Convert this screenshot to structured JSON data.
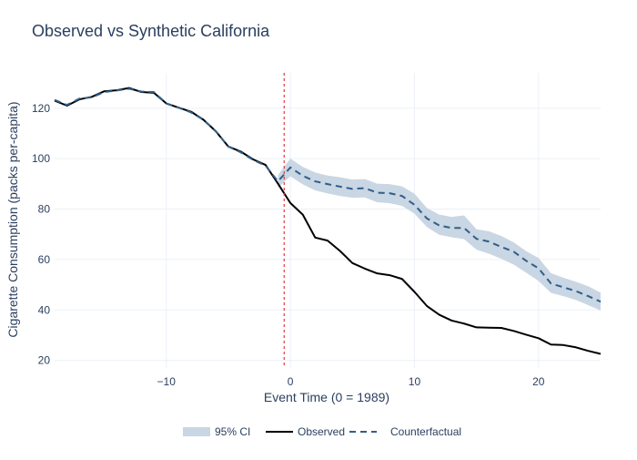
{
  "colors": {
    "title": "#2a3f5f",
    "axis_text": "#2a3f5f",
    "grid": "#ebf0f8",
    "observed": "#000000",
    "counterfactual": "#2f5f8a",
    "ci_fill": "#c9d6e3",
    "event_line": "#e0393e"
  },
  "chart_data": {
    "type": "line",
    "title": "Observed vs Synthetic California",
    "xlabel": "Event Time (0 = 1989)",
    "ylabel": "Cigarette Consumption (packs per-capita)",
    "xlim": [
      -19,
      25
    ],
    "ylim": [
      17,
      134
    ],
    "x_ticks": [
      -10,
      0,
      10,
      20
    ],
    "x_tick_labels": [
      "−10",
      "0",
      "10",
      "20"
    ],
    "y_ticks": [
      20,
      40,
      60,
      80,
      100,
      120
    ],
    "grid": true,
    "legend_position": "bottom-center",
    "event_time_marker": -0.5,
    "x": [
      -19,
      -18,
      -17,
      -16,
      -15,
      -14,
      -13,
      -12,
      -11,
      -10,
      -9,
      -8,
      -7,
      -6,
      -5,
      -4,
      -3,
      -2,
      -1,
      0,
      1,
      2,
      3,
      4,
      5,
      6,
      7,
      8,
      9,
      10,
      11,
      12,
      13,
      14,
      15,
      16,
      17,
      18,
      19,
      20,
      21,
      22,
      23,
      24,
      25
    ],
    "series": [
      {
        "name": "Observed",
        "style": "solid",
        "values": [
          123.0,
          121.0,
          123.5,
          124.5,
          126.7,
          127.1,
          128.0,
          126.4,
          126.1,
          121.9,
          120.2,
          118.6,
          115.4,
          110.8,
          104.8,
          102.8,
          99.7,
          97.5,
          90.1,
          82.4,
          77.8,
          68.7,
          67.5,
          63.4,
          58.6,
          56.4,
          54.5,
          53.8,
          52.3,
          47.2,
          41.6,
          38.1,
          35.8,
          34.6,
          33.1,
          33.0,
          32.9,
          31.7,
          30.2,
          28.8,
          26.3,
          26.1,
          25.2,
          23.8,
          22.6
        ]
      },
      {
        "name": "Counterfactual",
        "style": "dashed",
        "values": [
          123.3,
          121.3,
          123.8,
          124.3,
          126.4,
          127.0,
          127.7,
          126.6,
          126.4,
          121.9,
          120.2,
          118.3,
          115.4,
          110.8,
          104.8,
          102.5,
          99.5,
          97.2,
          91.0,
          96.5,
          93.2,
          91.0,
          89.9,
          88.9,
          88.0,
          88.3,
          86.5,
          86.3,
          85.2,
          81.7,
          76.3,
          73.5,
          72.5,
          72.5,
          68.2,
          67.1,
          65.0,
          63.1,
          59.5,
          56.5,
          50.5,
          49.0,
          47.5,
          45.5,
          43.3
        ]
      }
    ],
    "ci": {
      "name": "95% CI",
      "x_start": -1,
      "lower": [
        88.5,
        93.0,
        89.8,
        87.4,
        86.2,
        85.2,
        84.5,
        84.6,
        82.7,
        82.3,
        81.3,
        78.2,
        72.9,
        69.8,
        68.8,
        68.1,
        63.9,
        62.3,
        60.3,
        58.0,
        54.8,
        51.5,
        46.8,
        45.5,
        44.0,
        41.9,
        39.8
      ],
      "upper": [
        93.5,
        100.0,
        96.7,
        94.5,
        93.3,
        92.6,
        91.7,
        91.9,
        90.1,
        89.9,
        89.0,
        86.1,
        80.4,
        77.8,
        76.9,
        77.5,
        72.0,
        71.2,
        69.3,
        66.8,
        63.3,
        60.6,
        54.6,
        52.8,
        51.2,
        49.4,
        46.9
      ]
    }
  },
  "legend": {
    "items": [
      {
        "label": "95% CI",
        "kind": "ci"
      },
      {
        "label": "Observed",
        "kind": "observed"
      },
      {
        "label": "Counterfactual",
        "kind": "counterfactual"
      }
    ]
  }
}
